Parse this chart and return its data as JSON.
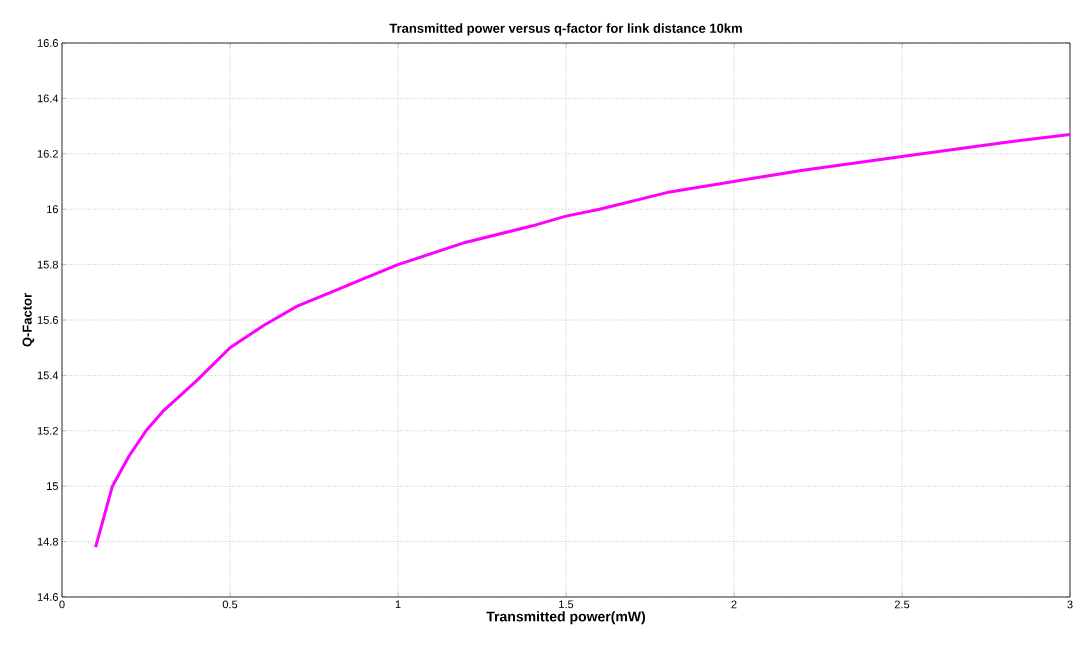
{
  "chart_data": {
    "type": "line",
    "title": "Transmitted power versus q-factor for link distance 10km",
    "xlabel": "Transmitted power(mW)",
    "ylabel": "Q-Factor",
    "x": [
      0.1,
      0.15,
      0.2,
      0.25,
      0.3,
      0.4,
      0.5,
      0.6,
      0.7,
      0.8,
      0.9,
      1.0,
      1.2,
      1.4,
      1.5,
      1.6,
      1.8,
      2.0,
      2.2,
      2.5,
      2.8,
      3.0
    ],
    "series": [
      {
        "color": "#ff00ff",
        "values": [
          14.78,
          15.0,
          15.11,
          15.2,
          15.27,
          15.38,
          15.5,
          15.58,
          15.65,
          15.7,
          15.75,
          15.8,
          15.88,
          15.94,
          15.975,
          16.0,
          16.06,
          16.1,
          16.14,
          16.19,
          16.24,
          16.27
        ]
      }
    ],
    "xlim": [
      0,
      3
    ],
    "ylim": [
      14.6,
      16.6
    ],
    "xticks": [
      0,
      0.5,
      1,
      1.5,
      2,
      2.5,
      3
    ],
    "yticks": [
      14.6,
      14.8,
      15,
      15.2,
      15.4,
      15.6,
      15.8,
      16,
      16.2,
      16.4,
      16.6
    ],
    "grid": true,
    "marker": "none",
    "line_style": "solid"
  }
}
